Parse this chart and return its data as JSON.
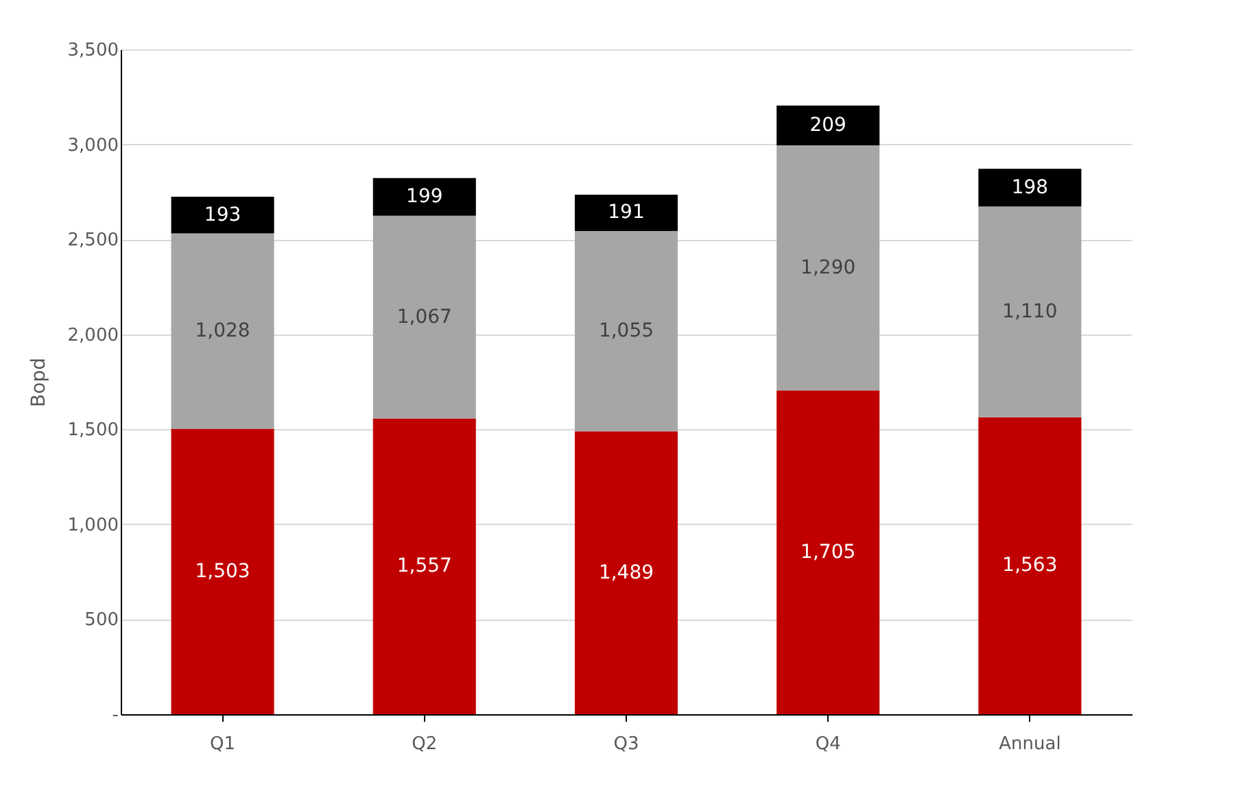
{
  "chart_data": {
    "type": "bar",
    "stacked": true,
    "ylabel": "Bopd",
    "categories": [
      "Q1",
      "Q2",
      "Q3",
      "Q4",
      "Annual"
    ],
    "series": [
      {
        "color": "#c00000",
        "values": [
          1503,
          1557,
          1489,
          1705,
          1563
        ],
        "value_labels": [
          "1,503",
          "1,557",
          "1,489",
          "1,705",
          "1,563"
        ]
      },
      {
        "color": "#a6a6a6",
        "values": [
          1028,
          1067,
          1055,
          1290,
          1110
        ],
        "value_labels": [
          "1,028",
          "1,067",
          "1,055",
          "1,290",
          "1,110"
        ]
      },
      {
        "color": "#000000",
        "values": [
          193,
          199,
          191,
          209,
          198
        ],
        "value_labels": [
          "193",
          "199",
          "191",
          "209",
          "198"
        ]
      }
    ],
    "ylim": [
      0,
      3500
    ],
    "yticks": [
      {
        "value": 0,
        "label": "-"
      },
      {
        "value": 500,
        "label": "500"
      },
      {
        "value": 1000,
        "label": "1,000"
      },
      {
        "value": 1500,
        "label": "1,500"
      },
      {
        "value": 2000,
        "label": "2,000"
      },
      {
        "value": 2500,
        "label": "2,500"
      },
      {
        "value": 3000,
        "label": "3,000"
      },
      {
        "value": 3500,
        "label": "3,500"
      }
    ],
    "grid": "y"
  }
}
